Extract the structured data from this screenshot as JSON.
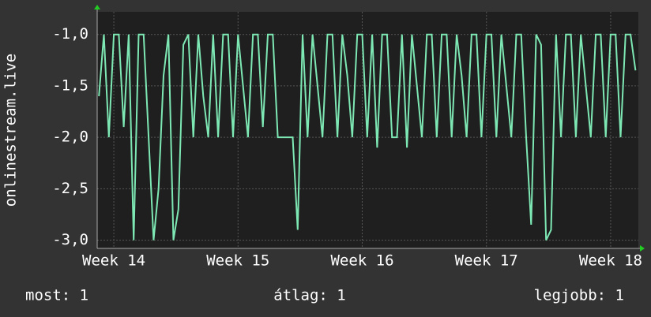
{
  "chart_data": {
    "type": "line",
    "y_label": "onlinestream.live",
    "x": [
      13.88,
      13.92,
      13.96,
      14.0,
      14.04,
      14.08,
      14.12,
      14.16,
      14.2,
      14.24,
      14.28,
      14.32,
      14.36,
      14.4,
      14.44,
      14.48,
      14.52,
      14.56,
      14.6,
      14.64,
      14.68,
      14.72,
      14.76,
      14.8,
      14.84,
      14.88,
      14.92,
      14.96,
      15.0,
      15.04,
      15.08,
      15.12,
      15.16,
      15.2,
      15.24,
      15.28,
      15.32,
      15.36,
      15.4,
      15.44,
      15.48,
      15.52,
      15.56,
      15.6,
      15.64,
      15.68,
      15.72,
      15.76,
      15.8,
      15.84,
      15.88,
      15.92,
      15.96,
      16.0,
      16.04,
      16.08,
      16.12,
      16.16,
      16.2,
      16.24,
      16.28,
      16.32,
      16.36,
      16.4,
      16.44,
      16.48,
      16.52,
      16.56,
      16.6,
      16.64,
      16.68,
      16.72,
      16.76,
      16.8,
      16.84,
      16.88,
      16.92,
      16.96,
      17.0,
      17.04,
      17.08,
      17.12,
      17.16,
      17.2,
      17.24,
      17.28,
      17.32,
      17.36,
      17.4,
      17.44,
      17.48,
      17.52,
      17.56,
      17.6,
      17.64,
      17.68,
      17.72,
      17.76,
      17.8,
      17.84,
      17.88,
      17.92,
      17.96,
      18.0,
      18.04,
      18.08,
      18.12,
      18.16,
      18.2
    ],
    "series": [
      {
        "color": "#7ee8b4",
        "values": [
          -1.6,
          -1.0,
          -2.0,
          -1.0,
          -1.0,
          -1.9,
          -1.0,
          -3.0,
          -1.0,
          -1.0,
          -2.0,
          -3.0,
          -2.5,
          -1.4,
          -1.0,
          -3.0,
          -2.7,
          -1.1,
          -1.0,
          -2.0,
          -1.0,
          -1.6,
          -2.0,
          -1.0,
          -2.0,
          -1.0,
          -1.0,
          -2.0,
          -1.0,
          -1.5,
          -2.0,
          -1.0,
          -1.0,
          -1.9,
          -1.0,
          -1.0,
          -2.0,
          -2.0,
          -2.0,
          -2.0,
          -2.9,
          -1.0,
          -2.0,
          -1.0,
          -1.5,
          -2.0,
          -1.0,
          -1.0,
          -2.0,
          -1.0,
          -1.4,
          -2.0,
          -1.0,
          -1.0,
          -2.0,
          -1.0,
          -2.1,
          -1.0,
          -1.0,
          -2.0,
          -2.0,
          -1.0,
          -2.1,
          -1.0,
          -1.5,
          -2.0,
          -1.0,
          -1.0,
          -2.0,
          -1.0,
          -1.0,
          -2.0,
          -1.0,
          -1.4,
          -2.0,
          -1.0,
          -1.0,
          -2.0,
          -1.0,
          -1.0,
          -2.0,
          -1.0,
          -1.5,
          -2.0,
          -1.0,
          -1.0,
          -2.0,
          -2.85,
          -1.0,
          -1.1,
          -3.0,
          -2.9,
          -1.0,
          -2.0,
          -1.0,
          -1.0,
          -2.0,
          -1.0,
          -1.5,
          -2.0,
          -1.0,
          -1.0,
          -2.0,
          -1.0,
          -1.0,
          -2.0,
          -1.0,
          -1.0,
          -1.35
        ]
      }
    ],
    "xlim": [
      13.866,
      18.223
    ],
    "xticks": [
      {
        "value": 14,
        "label": "Week 14"
      },
      {
        "value": 15,
        "label": "Week 15"
      },
      {
        "value": 16,
        "label": "Week 16"
      },
      {
        "value": 17,
        "label": "Week 17"
      },
      {
        "value": 18,
        "label": "Week 18"
      }
    ],
    "ylim": [
      -3.08,
      -0.78
    ],
    "yticks": [
      {
        "value": -3.0,
        "label": "-3,0"
      },
      {
        "value": -2.5,
        "label": "-2,5"
      },
      {
        "value": -2.0,
        "label": "-2,0"
      },
      {
        "value": -1.5,
        "label": "-1,5"
      },
      {
        "value": -1.0,
        "label": "-1,0"
      }
    ],
    "grid": true,
    "legend": [
      "most: 1",
      "átlag: 1",
      "legjobb: 1"
    ]
  }
}
